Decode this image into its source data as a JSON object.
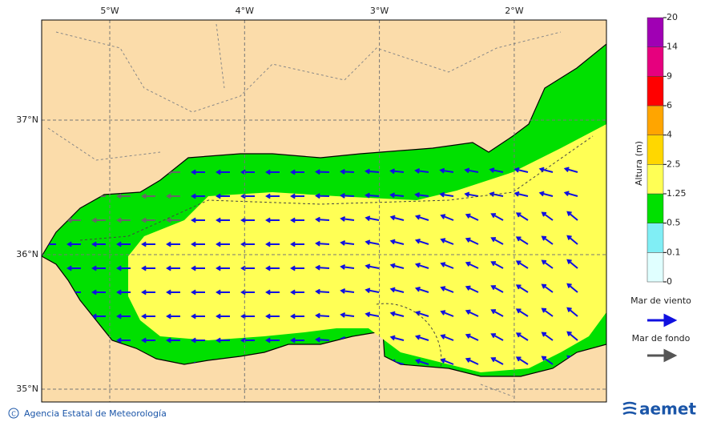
{
  "map": {
    "lon_labels": [
      "5°W",
      "4°W",
      "3°W",
      "2°W"
    ],
    "lat_labels": [
      "37°N",
      "36°N",
      "35°N"
    ]
  },
  "legend": {
    "title": "Altura (m)",
    "levels": [
      0,
      0.1,
      0.5,
      1.25,
      2.5,
      4,
      6,
      9,
      14,
      20
    ],
    "colors": [
      "#e0ffff",
      "#80eef5",
      "#00e000",
      "#ffff55",
      "#ffd700",
      "#ffa500",
      "#ff0000",
      "#e6007e",
      "#a000b4"
    ],
    "wind_sea": "Mar de viento",
    "swell": "Mar de fondo"
  },
  "footer": {
    "credit": "Agencia Estatal de Meteorología",
    "logo": "aemet"
  }
}
